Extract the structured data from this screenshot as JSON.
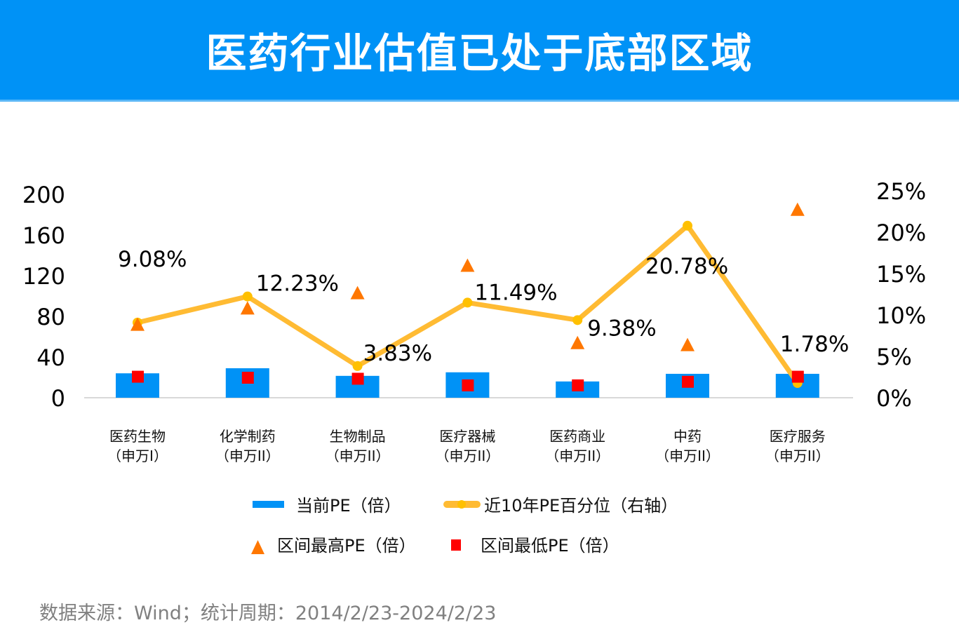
{
  "header": {
    "title": "医药行业估值已处于底部区域"
  },
  "source": "数据来源：Wind；统计周期：2014/2/23-2024/2/23",
  "colors": {
    "bar": "#0092f6",
    "line": "#ffbb33",
    "line_marker": "#ffc000",
    "max": "#ff7700",
    "min": "#ff0000",
    "axis": "#d9d9d9",
    "header": "#0092f6"
  },
  "chart_data": {
    "type": "bar",
    "title": "医药行业估值已处于底部区域",
    "categories": [
      [
        "医药生物",
        "（申万I）"
      ],
      [
        "化学制药",
        "（申万II）"
      ],
      [
        "生物制品",
        "（申万II）"
      ],
      [
        "医疗器械",
        "（申万II）"
      ],
      [
        "医药商业",
        "（申万II）"
      ],
      [
        "中药",
        "（申万II）"
      ],
      [
        "医疗服务",
        "（申万II）"
      ]
    ],
    "left_axis": {
      "ylim": [
        0,
        200
      ],
      "ticks": [
        "0",
        "40",
        "80",
        "120",
        "160",
        "200"
      ],
      "tick_values": [
        0,
        40,
        80,
        120,
        160,
        200
      ]
    },
    "right_axis": {
      "ylim": [
        0,
        25
      ],
      "ticks": [
        "0%",
        "5%",
        "10%",
        "15%",
        "20%",
        "25%"
      ],
      "tick_values": [
        0,
        5,
        10,
        15,
        20,
        25
      ]
    },
    "series": [
      {
        "name": "当前PE（倍）",
        "type": "bar",
        "axis": "left",
        "values": [
          24,
          29,
          21.5,
          25,
          16,
          23.5,
          23.5
        ]
      },
      {
        "name": "近10年PE百分位（右轴）",
        "type": "line",
        "axis": "right",
        "values": [
          9.08,
          12.23,
          3.83,
          11.49,
          9.38,
          20.78,
          1.78
        ],
        "labels": [
          "9.08%",
          "12.23%",
          "3.83%",
          "11.49%",
          "9.38%",
          "20.78%",
          "1.78%"
        ]
      },
      {
        "name": "区间最高PE（倍）",
        "type": "scatter",
        "marker": "triangle",
        "axis": "left",
        "values": [
          72,
          88,
          103,
          130,
          54,
          52,
          185
        ]
      },
      {
        "name": "区间最低PE（倍）",
        "type": "scatter",
        "marker": "square",
        "axis": "left",
        "values": [
          21,
          20,
          19,
          12.5,
          12.5,
          16,
          21
        ]
      }
    ],
    "legend": {
      "placement": "bottom",
      "items": [
        "当前PE（倍）",
        "近10年PE百分位（右轴）",
        "区间最高PE（倍）",
        "区间最低PE（倍）"
      ]
    },
    "grid": false
  }
}
